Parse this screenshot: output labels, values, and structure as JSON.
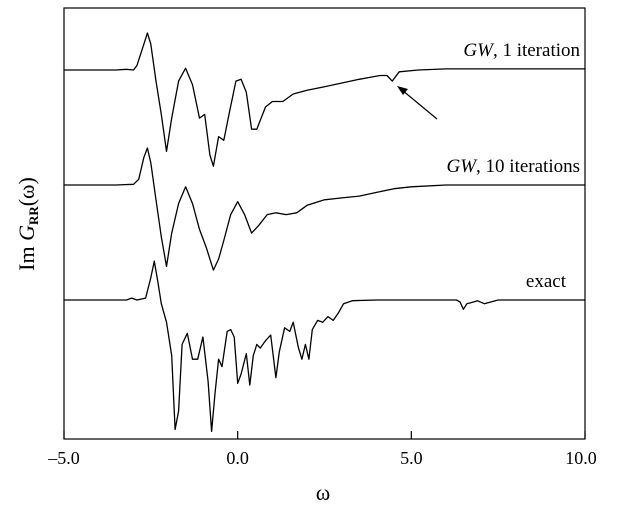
{
  "chart_data": {
    "type": "line",
    "xlabel": "ω",
    "ylabel_prefix": "Im ",
    "ylabel_main": "G",
    "ylabel_sub": "RR",
    "ylabel_suffix": "(ω)",
    "xlim": [
      -5.0,
      10.0
    ],
    "x_ticks": [
      -5.0,
      0.0,
      5.0,
      10.0
    ],
    "x_tick_labels": [
      "–5.0",
      "0.0",
      "5.0",
      "10.0"
    ],
    "y_ticks": [],
    "grid": false,
    "legend": "none",
    "series": [
      {
        "name": "GW, 1 iteration",
        "name_italic": "GW",
        "name_rest": ", 1 iteration",
        "points": [
          [
            -5.0,
            0
          ],
          [
            -3.5,
            0
          ],
          [
            -3.2,
            0.02
          ],
          [
            -3.0,
            0
          ],
          [
            -2.9,
            0.12
          ],
          [
            -2.7,
            0.7
          ],
          [
            -2.6,
            1.0
          ],
          [
            -2.5,
            0.7
          ],
          [
            -2.35,
            -0.3
          ],
          [
            -2.2,
            -1.2
          ],
          [
            -2.05,
            -2.2
          ],
          [
            -1.9,
            -1.3
          ],
          [
            -1.7,
            -0.3
          ],
          [
            -1.5,
            0.05
          ],
          [
            -1.3,
            -0.4
          ],
          [
            -1.1,
            -1.3
          ],
          [
            -0.95,
            -1.2
          ],
          [
            -0.8,
            -2.3
          ],
          [
            -0.7,
            -2.6
          ],
          [
            -0.55,
            -1.8
          ],
          [
            -0.4,
            -1.9
          ],
          [
            -0.25,
            -1.2
          ],
          [
            -0.05,
            -0.3
          ],
          [
            0.1,
            -0.25
          ],
          [
            0.25,
            -0.6
          ],
          [
            0.4,
            -1.6
          ],
          [
            0.55,
            -1.6
          ],
          [
            0.8,
            -1.0
          ],
          [
            1.0,
            -0.85
          ],
          [
            1.3,
            -0.85
          ],
          [
            1.6,
            -0.65
          ],
          [
            2.0,
            -0.55
          ],
          [
            2.5,
            -0.45
          ],
          [
            3.0,
            -0.35
          ],
          [
            3.5,
            -0.25
          ],
          [
            3.8,
            -0.2
          ],
          [
            4.1,
            -0.15
          ],
          [
            4.3,
            -0.15
          ],
          [
            4.45,
            -0.3
          ],
          [
            4.65,
            -0.05
          ],
          [
            5.2,
            0.0
          ],
          [
            6.0,
            0.03
          ],
          [
            10.0,
            0.03
          ]
        ]
      },
      {
        "name": "GW, 10 iterations",
        "name_italic": "GW",
        "name_rest": ", 10 iterations",
        "points": [
          [
            -5.0,
            0
          ],
          [
            -3.5,
            0
          ],
          [
            -3.0,
            0.02
          ],
          [
            -2.85,
            0.15
          ],
          [
            -2.7,
            0.75
          ],
          [
            -2.6,
            1.0
          ],
          [
            -2.5,
            0.6
          ],
          [
            -2.35,
            -0.4
          ],
          [
            -2.2,
            -1.4
          ],
          [
            -2.05,
            -2.2
          ],
          [
            -1.9,
            -1.3
          ],
          [
            -1.7,
            -0.5
          ],
          [
            -1.5,
            -0.05
          ],
          [
            -1.3,
            -0.5
          ],
          [
            -1.1,
            -1.2
          ],
          [
            -0.9,
            -1.7
          ],
          [
            -0.7,
            -2.3
          ],
          [
            -0.55,
            -2.0
          ],
          [
            -0.4,
            -1.5
          ],
          [
            -0.2,
            -0.8
          ],
          [
            0.0,
            -0.45
          ],
          [
            0.2,
            -0.8
          ],
          [
            0.4,
            -1.3
          ],
          [
            0.6,
            -1.1
          ],
          [
            0.85,
            -0.8
          ],
          [
            1.1,
            -0.75
          ],
          [
            1.4,
            -0.8
          ],
          [
            1.7,
            -0.75
          ],
          [
            2.0,
            -0.55
          ],
          [
            2.5,
            -0.4
          ],
          [
            3.0,
            -0.35
          ],
          [
            3.5,
            -0.3
          ],
          [
            4.0,
            -0.2
          ],
          [
            4.5,
            -0.1
          ],
          [
            5.0,
            -0.05
          ],
          [
            6.0,
            0.0
          ],
          [
            10.0,
            0.0
          ]
        ]
      },
      {
        "name": "exact",
        "name_italic": "",
        "name_rest": "exact",
        "points": [
          [
            -5.0,
            0
          ],
          [
            -3.2,
            0
          ],
          [
            -3.05,
            0.05
          ],
          [
            -2.9,
            0
          ],
          [
            -2.65,
            0.05
          ],
          [
            -2.5,
            0.6
          ],
          [
            -2.4,
            1.05
          ],
          [
            -2.3,
            0.5
          ],
          [
            -2.2,
            -0.1
          ],
          [
            -2.05,
            -0.6
          ],
          [
            -1.9,
            -1.5
          ],
          [
            -1.8,
            -3.5
          ],
          [
            -1.7,
            -3.0
          ],
          [
            -1.6,
            -1.2
          ],
          [
            -1.45,
            -0.9
          ],
          [
            -1.3,
            -1.6
          ],
          [
            -1.15,
            -1.6
          ],
          [
            -1.0,
            -1.0
          ],
          [
            -0.85,
            -2.2
          ],
          [
            -0.75,
            -3.55
          ],
          [
            -0.65,
            -2.5
          ],
          [
            -0.55,
            -1.6
          ],
          [
            -0.45,
            -1.8
          ],
          [
            -0.3,
            -0.85
          ],
          [
            -0.2,
            -0.8
          ],
          [
            -0.1,
            -1.0
          ],
          [
            0.0,
            -2.25
          ],
          [
            0.1,
            -2.0
          ],
          [
            0.25,
            -1.45
          ],
          [
            0.35,
            -2.3
          ],
          [
            0.45,
            -1.5
          ],
          [
            0.55,
            -1.2
          ],
          [
            0.65,
            -1.3
          ],
          [
            0.8,
            -1.1
          ],
          [
            0.95,
            -0.95
          ],
          [
            1.1,
            -2.1
          ],
          [
            1.2,
            -1.4
          ],
          [
            1.35,
            -0.75
          ],
          [
            1.5,
            -0.85
          ],
          [
            1.6,
            -0.6
          ],
          [
            1.75,
            -1.3
          ],
          [
            1.85,
            -1.6
          ],
          [
            1.95,
            -1.2
          ],
          [
            2.05,
            -1.6
          ],
          [
            2.15,
            -0.8
          ],
          [
            2.3,
            -0.55
          ],
          [
            2.45,
            -0.6
          ],
          [
            2.6,
            -0.45
          ],
          [
            2.75,
            -0.55
          ],
          [
            2.9,
            -0.35
          ],
          [
            3.05,
            -0.1
          ],
          [
            3.3,
            -0.02
          ],
          [
            4.0,
            0.0
          ],
          [
            6.3,
            0.0
          ],
          [
            6.4,
            -0.05
          ],
          [
            6.5,
            -0.25
          ],
          [
            6.6,
            -0.1
          ],
          [
            6.8,
            -0.05
          ],
          [
            6.9,
            -0.02
          ],
          [
            7.1,
            -0.1
          ],
          [
            7.3,
            -0.05
          ],
          [
            7.5,
            0.0
          ],
          [
            10.0,
            0.0
          ]
        ]
      }
    ]
  }
}
